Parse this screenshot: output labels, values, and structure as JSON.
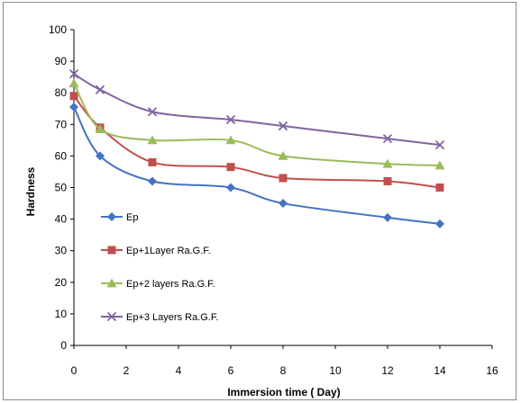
{
  "chart_data": {
    "type": "line",
    "xlabel": "Immersion time ( Day)",
    "ylabel": "Hardness",
    "xlim": [
      0,
      16
    ],
    "ylim": [
      0,
      100
    ],
    "xticks": [
      "0",
      "2",
      "4",
      "6",
      "8",
      "10",
      "12",
      "14",
      "16"
    ],
    "yticks": [
      "0",
      "10",
      "20",
      "30",
      "40",
      "50",
      "60",
      "70",
      "80",
      "90",
      "100"
    ],
    "grid": false,
    "legend_position": "left",
    "x": [
      0,
      1,
      3,
      6,
      8,
      12,
      14
    ],
    "series": [
      {
        "name": "Ep",
        "color": "#4472C4",
        "marker": "diamond",
        "values": [
          75.5,
          60,
          52,
          50,
          45,
          40.5,
          38.5
        ]
      },
      {
        "name": "Ep+1Layer Ra.G.F.",
        "color": "#C0504D",
        "marker": "square",
        "values": [
          79,
          69,
          58,
          56.5,
          53,
          52,
          50
        ]
      },
      {
        "name": "Ep+2 layers  Ra.G.F.",
        "color": "#9BBB59",
        "marker": "triangle",
        "values": [
          83,
          68.5,
          65,
          65,
          60,
          57.5,
          57
        ]
      },
      {
        "name": "Ep+3 Layers  Ra.G.F.",
        "color": "#8064A2",
        "marker": "x",
        "values": [
          86,
          81,
          74,
          71.5,
          69.5,
          65.5,
          63.5
        ]
      }
    ]
  }
}
